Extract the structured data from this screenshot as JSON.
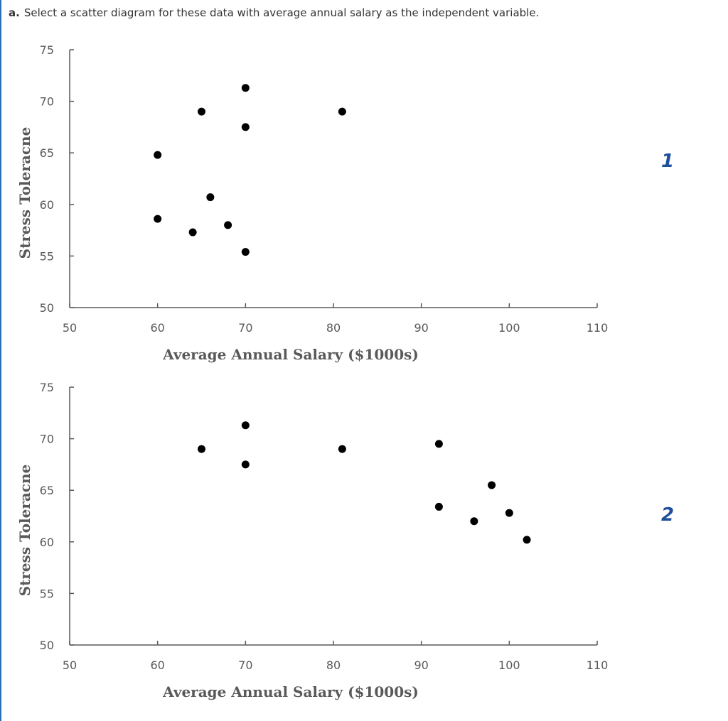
{
  "question": {
    "label": "a.",
    "text": "Select a scatter diagram for these data with average annual salary as the independent variable."
  },
  "colors": {
    "accent": "#1f4e9b",
    "axis": "#595959",
    "point": "#000000",
    "rule": "#2d6fb5"
  },
  "options": [
    {
      "number": "1"
    },
    {
      "number": "2"
    }
  ],
  "chart_data": [
    {
      "type": "scatter",
      "option": "1",
      "xlabel": "Average Annual Salary ($1000s)",
      "ylabel": "Stress Toleracne",
      "xlim": [
        50,
        110
      ],
      "ylim": [
        50,
        75
      ],
      "xticks": [
        50,
        60,
        70,
        80,
        90,
        100,
        110
      ],
      "yticks": [
        50,
        55,
        60,
        65,
        70,
        75
      ],
      "x": [
        60,
        60,
        64,
        65,
        66,
        68,
        70,
        70,
        70,
        81
      ],
      "y": [
        64.8,
        58.6,
        57.3,
        69,
        60.7,
        58,
        71.3,
        67.5,
        55.4,
        69
      ]
    },
    {
      "type": "scatter",
      "option": "2",
      "xlabel": "Average Annual Salary ($1000s)",
      "ylabel": "Stress Toleracne",
      "xlim": [
        50,
        110
      ],
      "ylim": [
        50,
        75
      ],
      "xticks": [
        50,
        60,
        70,
        80,
        90,
        100,
        110
      ],
      "yticks": [
        50,
        55,
        60,
        65,
        70,
        75
      ],
      "x": [
        65,
        70,
        70,
        81,
        92,
        92,
        96,
        98,
        100,
        102
      ],
      "y": [
        69,
        71.3,
        67.5,
        69,
        69.5,
        63.4,
        62,
        65.5,
        62.8,
        60.2
      ]
    }
  ]
}
